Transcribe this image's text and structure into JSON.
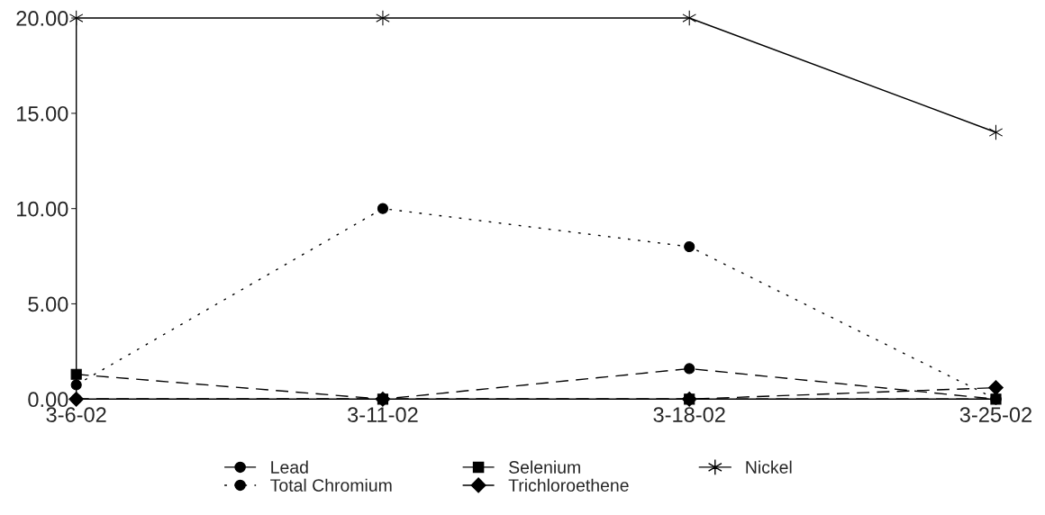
{
  "chart_data": {
    "type": "line",
    "categories": [
      "3-6-02",
      "3-11-02",
      "3-18-02",
      "3-25-02"
    ],
    "series": [
      {
        "name": "Lead",
        "color": "#000000",
        "marker": "circle",
        "line_style": "dashed",
        "values": [
          0,
          0,
          1.6,
          0
        ]
      },
      {
        "name": "Total Chromium",
        "color": "#000000",
        "marker": "circle",
        "line_style": "dotted",
        "values": [
          0.75,
          10,
          8,
          0
        ]
      },
      {
        "name": "Selenium",
        "color": "#000000",
        "marker": "square",
        "line_style": "dashed",
        "values": [
          1.3,
          0,
          0,
          0
        ]
      },
      {
        "name": "Trichloroethene",
        "color": "#000000",
        "marker": "diamond",
        "line_style": "dashed",
        "values": [
          0,
          0,
          0,
          0.6
        ]
      },
      {
        "name": "Nickel",
        "color": "#000000",
        "marker": "cross",
        "line_style": "solid",
        "values": [
          20,
          20,
          20,
          14
        ]
      }
    ],
    "ylim": [
      0,
      20
    ],
    "yticks": [
      {
        "value": 0,
        "label": "0.00"
      },
      {
        "value": 5,
        "label": "5.00"
      },
      {
        "value": 10,
        "label": "10.00"
      },
      {
        "value": 15,
        "label": "15.00"
      },
      {
        "value": 20,
        "label": "20.00"
      }
    ],
    "grid": false,
    "legend": "bottom"
  }
}
